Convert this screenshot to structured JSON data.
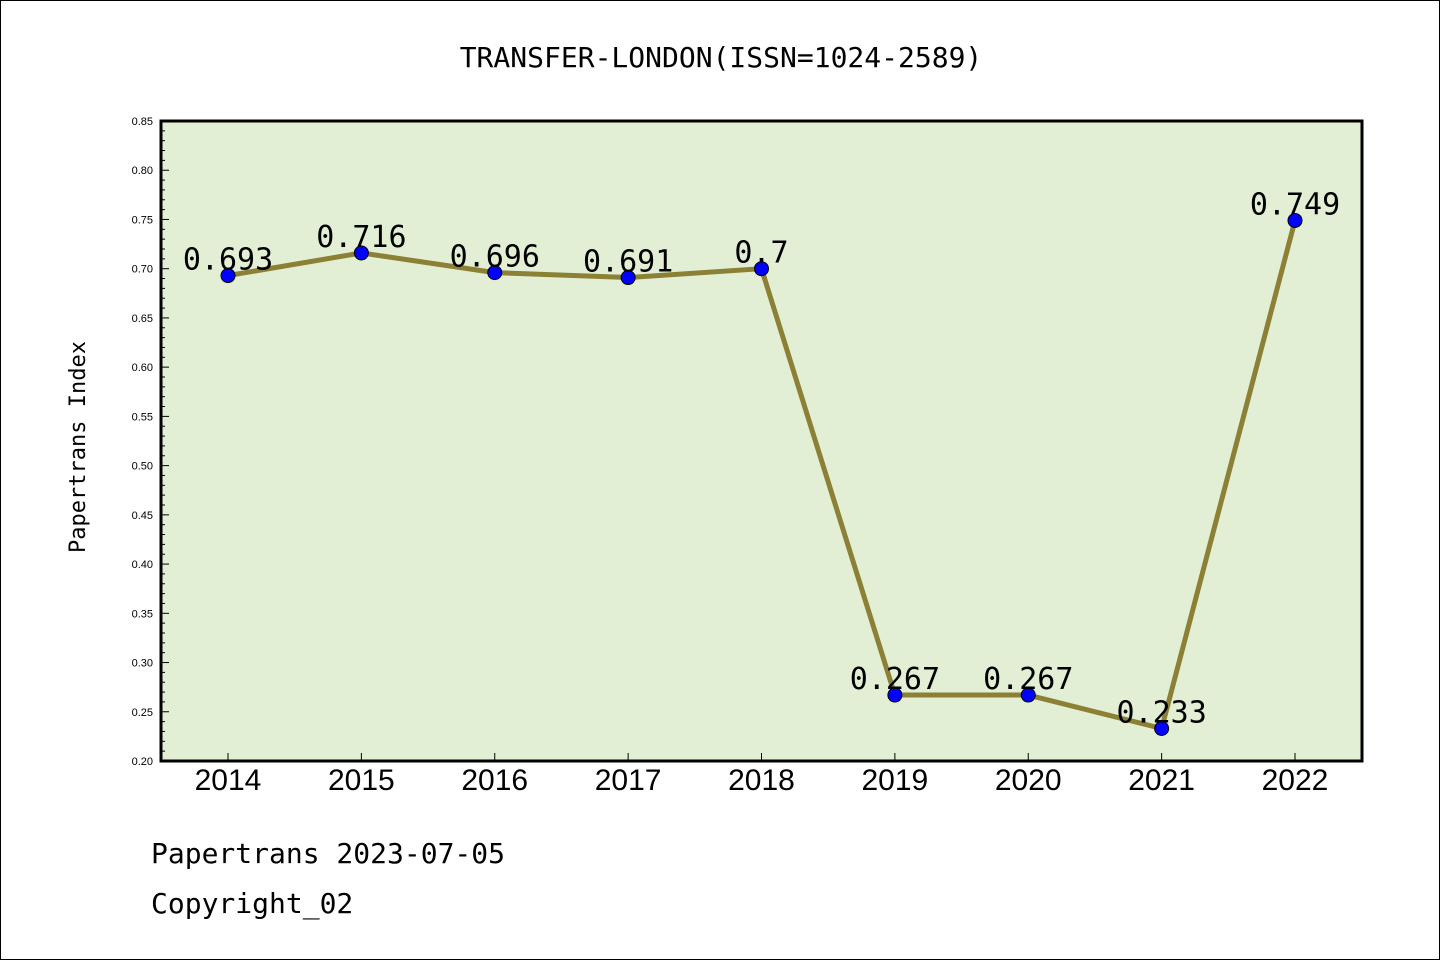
{
  "chart_data": {
    "type": "line",
    "title": "TRANSFER-LONDON(ISSN=1024-2589)",
    "ylabel": "Papertrans Index",
    "xlabel": "",
    "categories": [
      "2014",
      "2015",
      "2016",
      "2017",
      "2018",
      "2019",
      "2020",
      "2021",
      "2022"
    ],
    "values": [
      0.693,
      0.716,
      0.696,
      0.691,
      0.7,
      0.267,
      0.267,
      0.233,
      0.749
    ],
    "data_labels": [
      "0.693",
      "0.716",
      "0.696",
      "0.691",
      "0.7",
      "0.267",
      "0.267",
      "0.233",
      "0.749"
    ],
    "ylim": [
      0.2,
      0.85
    ],
    "yticks": [
      "0.20",
      "0.25",
      "0.30",
      "0.35",
      "0.40",
      "0.45",
      "0.50",
      "0.55",
      "0.60",
      "0.65",
      "0.70",
      "0.75",
      "0.80",
      "0.85"
    ],
    "grid": false,
    "colors": {
      "plot_background": "#e2efd5",
      "line": "#8b8034",
      "marker": "#0000ff"
    }
  },
  "footer": {
    "line1": "Papertrans 2023-07-05",
    "line2": "Copyright_02"
  }
}
